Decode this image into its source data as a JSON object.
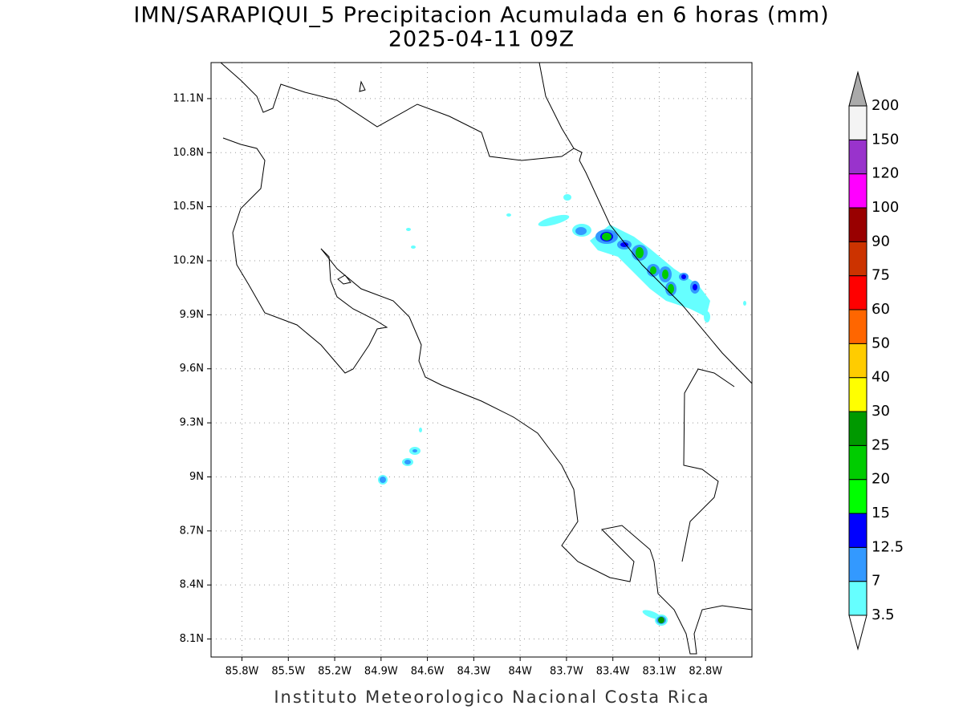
{
  "chart_data": {
    "type": "map",
    "title": "IMN/SARAPIQUI_5 Precipitacion Acumulada en 6 horas (mm)",
    "subtitle": "2025-04-11 09Z",
    "xlim": [
      -86.0,
      -82.5
    ],
    "ylim": [
      8.0,
      11.3
    ],
    "xticks": [
      {
        "value": -85.8,
        "label": "85.8W"
      },
      {
        "value": -85.5,
        "label": "85.5W"
      },
      {
        "value": -85.2,
        "label": "85.2W"
      },
      {
        "value": -84.9,
        "label": "84.9W"
      },
      {
        "value": -84.6,
        "label": "84.6W"
      },
      {
        "value": -84.3,
        "label": "84.3W"
      },
      {
        "value": -84.0,
        "label": "84W"
      },
      {
        "value": -83.7,
        "label": "83.7W"
      },
      {
        "value": -83.4,
        "label": "83.4W"
      },
      {
        "value": -83.1,
        "label": "83.1W"
      },
      {
        "value": -82.8,
        "label": "82.8W"
      }
    ],
    "yticks": [
      {
        "value": 8.1,
        "label": "8.1N"
      },
      {
        "value": 8.4,
        "label": "8.4N"
      },
      {
        "value": 8.7,
        "label": "8.7N"
      },
      {
        "value": 9.0,
        "label": "9N"
      },
      {
        "value": 9.3,
        "label": "9.3N"
      },
      {
        "value": 9.6,
        "label": "9.6N"
      },
      {
        "value": 9.9,
        "label": "9.9N"
      },
      {
        "value": 10.2,
        "label": "10.2N"
      },
      {
        "value": 10.5,
        "label": "10.5N"
      },
      {
        "value": 10.8,
        "label": "10.8N"
      },
      {
        "value": 11.1,
        "label": "11.1N"
      }
    ],
    "grid": true,
    "colorbar": {
      "levels": [
        3.5,
        7,
        12.5,
        15,
        20,
        25,
        30,
        40,
        50,
        60,
        75,
        90,
        100,
        120,
        150,
        200
      ],
      "colors": [
        "#66ffff",
        "#3399ff",
        "#0000ff",
        "#00ff00",
        "#00cc00",
        "#009900",
        "#ffff00",
        "#ffcc00",
        "#ff6600",
        "#ff0000",
        "#cc3300",
        "#990000",
        "#ff00ff",
        "#9933cc",
        "#f4f4f4"
      ],
      "under_color": "#ffffff",
      "over_color": "#aaaaaa"
    },
    "footer": "Instituto Meteorologico Nacional Costa Rica"
  }
}
